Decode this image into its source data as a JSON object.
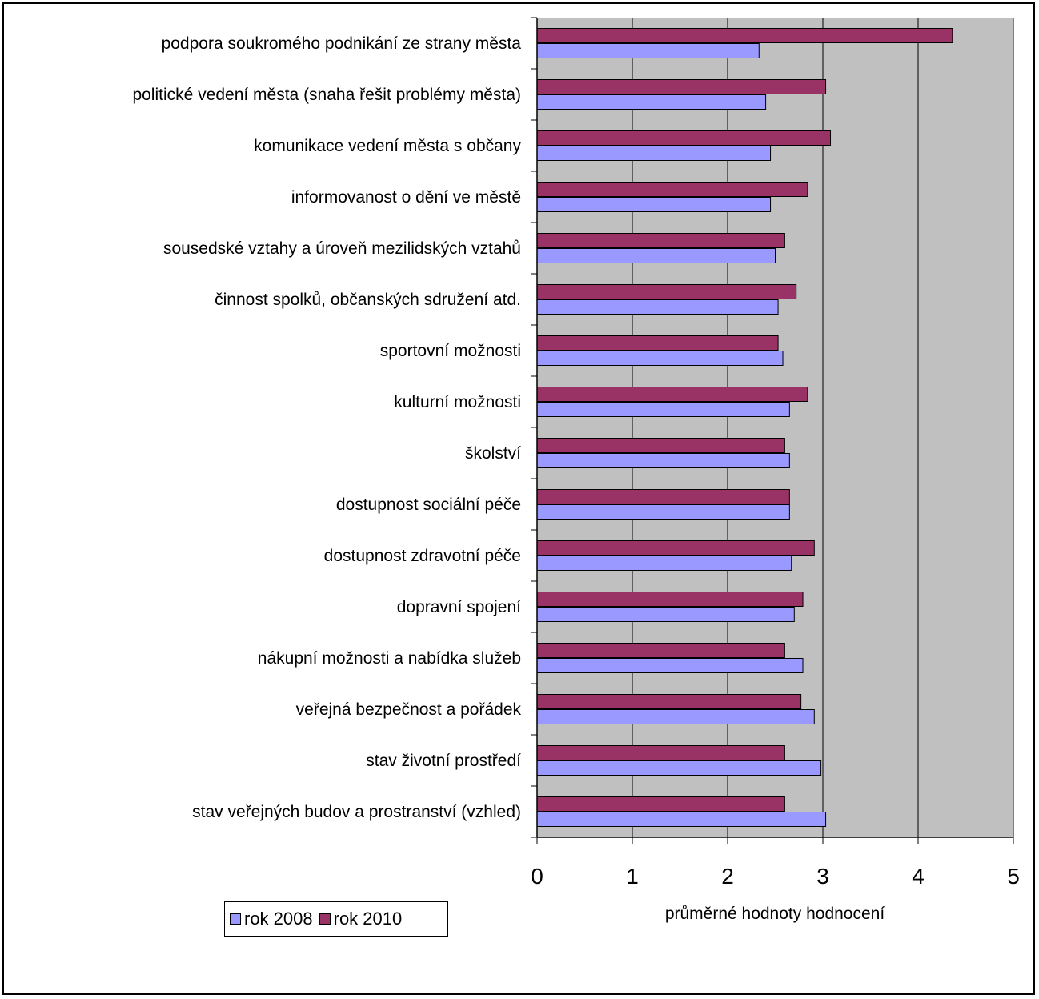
{
  "chart_data": {
    "type": "bar",
    "orientation": "horizontal",
    "categories": [
      "podpora soukromého podnikání ze strany města",
      "politické vedení města (snaha řešit problémy města)",
      "komunikace vedení města s občany ",
      "informovanost o dění ve městě",
      "sousedské vztahy a úroveň mezilidských vztahů ",
      "činnost spolků, občanských sdružení atd.",
      "sportovní možnosti",
      "kulturní možnosti",
      "školství",
      "dostupnost sociální péče",
      "dostupnost zdravotní péče",
      "dopravní spojení ",
      "nákupní možnosti a nabídka služeb",
      "veřejná bezpečnost a pořádek",
      "stav životní prostředí",
      "stav veřejných budov a prostranství (vzhled)"
    ],
    "series": [
      {
        "name": "rok 2008",
        "color": "#9999ff",
        "values": [
          2.33,
          2.4,
          2.45,
          2.45,
          2.5,
          2.53,
          2.58,
          2.65,
          2.65,
          2.65,
          2.67,
          2.7,
          2.79,
          2.91,
          2.98,
          3.03
        ]
      },
      {
        "name": "rok 2010",
        "color": "#993366",
        "values": [
          4.36,
          3.03,
          3.08,
          2.84,
          2.6,
          2.72,
          2.53,
          2.84,
          2.6,
          2.65,
          2.91,
          2.79,
          2.6,
          2.77,
          2.6,
          2.6
        ]
      }
    ],
    "xlim": [
      0,
      5
    ],
    "xticks": [
      "0",
      "1",
      "2",
      "3",
      "4",
      "5"
    ],
    "xlabel": "průměrné hodnoty hodnocení",
    "ylabel": "",
    "title": "",
    "grid": true,
    "plot_background": "#c0c0c0",
    "legend_position": "bottom-left"
  }
}
